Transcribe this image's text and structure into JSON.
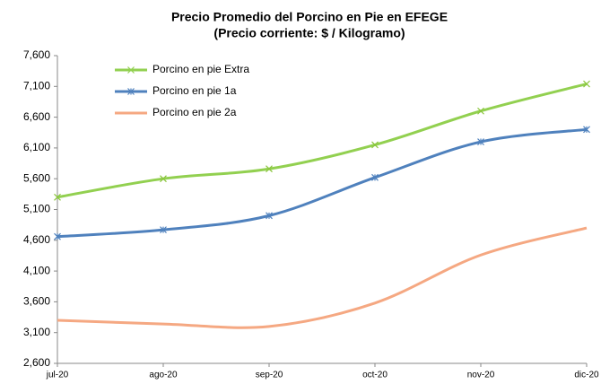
{
  "chart_data": {
    "type": "line",
    "title": "Precio Promedio del Porcino en Pie en EFEGE",
    "subtitle": "(Precio corriente: $ / Kilogramo)",
    "categories": [
      "jul-20",
      "ago-20",
      "sep-20",
      "oct-20",
      "nov-20",
      "dic-20"
    ],
    "series": [
      {
        "name": "Porcino en pie Extra",
        "color": "#92d050",
        "marker": "x",
        "values": [
          5300,
          5600,
          5760,
          6150,
          6700,
          7140
        ]
      },
      {
        "name": "Porcino en pie 1a",
        "color": "#4f81bd",
        "marker": "star",
        "values": [
          4660,
          4770,
          5000,
          5620,
          6200,
          6400
        ]
      },
      {
        "name": "Porcino en pie 2a",
        "color": "#f5a882",
        "marker": "none",
        "values": [
          3300,
          3240,
          3200,
          3580,
          4360,
          4800
        ]
      }
    ],
    "ylim": [
      2600,
      7600
    ],
    "yticks": [
      {
        "value": 2600,
        "label": "2,600"
      },
      {
        "value": 3100,
        "label": "3,100"
      },
      {
        "value": 3600,
        "label": "3,600"
      },
      {
        "value": 4100,
        "label": "4,100"
      },
      {
        "value": 4600,
        "label": "4,600"
      },
      {
        "value": 5100,
        "label": "5,100"
      },
      {
        "value": 5600,
        "label": "5,600"
      },
      {
        "value": 6100,
        "label": "6,100"
      },
      {
        "value": 6600,
        "label": "6,600"
      },
      {
        "value": 7100,
        "label": "7,100"
      },
      {
        "value": 7600,
        "label": "7,600"
      }
    ],
    "grid": false,
    "legend": "upper left",
    "smooth": true
  }
}
